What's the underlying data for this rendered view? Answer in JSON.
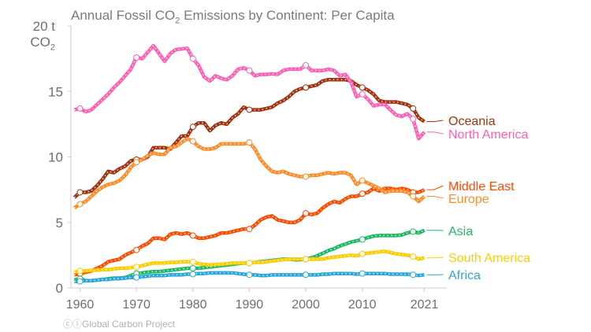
{
  "chart_data": {
    "type": "line",
    "title_prefix": "Annual Fossil CO",
    "title_sub": "2",
    "title_suffix": " Emissions by Continent: Per Capita",
    "ylabel_top": "20 t",
    "ylabel_unit": "CO",
    "ylabel_unit_sub": "2",
    "ylim": [
      0,
      20
    ],
    "xlim": [
      1958.5,
      2025
    ],
    "yticks": [
      "0",
      "5",
      "10",
      "15"
    ],
    "ytick_values": [
      0,
      5,
      10,
      15
    ],
    "xticks": [
      "1960",
      "1970",
      "1980",
      "1990",
      "2000",
      "2010",
      "2021"
    ],
    "xtick_values": [
      1960,
      1970,
      1980,
      1990,
      2000,
      2010,
      2021
    ],
    "marker_years": [
      1960,
      1970,
      1980,
      1990,
      2000,
      2010,
      2019
    ],
    "grid": false,
    "legend": "right, end-of-line labels",
    "series": [
      {
        "name": "Oceania",
        "color": "#a3320f",
        "start": 1959,
        "values": [
          6.9,
          7.3,
          7.3,
          7.4,
          7.8,
          8.3,
          8.9,
          8.8,
          9.1,
          9.3,
          9.7,
          9.8,
          9.8,
          10.0,
          10.7,
          10.7,
          10.7,
          10.6,
          11.1,
          11.6,
          11.6,
          12.3,
          12.6,
          12.6,
          12.0,
          12.4,
          12.6,
          12.5,
          13.0,
          13.3,
          13.8,
          13.6,
          13.6,
          13.6,
          13.7,
          13.8,
          14.1,
          14.3,
          14.6,
          15.0,
          15.2,
          15.3,
          15.4,
          15.5,
          15.8,
          15.9,
          15.9,
          15.9,
          15.9,
          15.8,
          15.5,
          15.3,
          15.1,
          14.8,
          14.3,
          14.2,
          14.2,
          14.2,
          14.1,
          14.0,
          13.7,
          13.0,
          12.7
        ]
      },
      {
        "name": "North America",
        "color": "#ff5fb4",
        "start": 1959,
        "values": [
          13.6,
          13.7,
          13.45,
          13.6,
          14.0,
          14.4,
          14.8,
          15.3,
          15.7,
          16.2,
          16.7,
          17.6,
          17.5,
          18.0,
          18.5,
          17.9,
          17.3,
          17.9,
          18.2,
          18.25,
          18.3,
          17.5,
          17.0,
          16.1,
          15.8,
          16.2,
          16.0,
          15.9,
          16.2,
          16.7,
          16.8,
          16.6,
          16.2,
          16.3,
          16.3,
          16.35,
          16.3,
          16.6,
          16.7,
          16.7,
          16.7,
          17.0,
          16.6,
          16.6,
          16.6,
          16.7,
          16.6,
          16.2,
          16.3,
          15.7,
          14.6,
          14.8,
          14.4,
          13.9,
          14.0,
          14.0,
          13.6,
          13.2,
          13.1,
          13.3,
          12.9,
          11.4,
          11.9
        ]
      },
      {
        "name": "Middle East",
        "color": "#ff4a00",
        "start": 1959,
        "values": [
          1.0,
          1.1,
          1.2,
          1.3,
          1.5,
          1.7,
          2.0,
          2.1,
          2.2,
          2.5,
          2.7,
          2.9,
          3.2,
          3.4,
          3.8,
          3.8,
          3.7,
          4.1,
          4.2,
          4.1,
          4.2,
          4.0,
          3.8,
          3.8,
          3.9,
          4.0,
          4.2,
          4.2,
          4.3,
          4.4,
          4.5,
          4.5,
          4.8,
          5.2,
          5.4,
          5.5,
          5.2,
          5.1,
          5.0,
          5.0,
          5.2,
          5.7,
          5.6,
          5.7,
          6.1,
          6.4,
          6.6,
          6.5,
          6.8,
          7.0,
          7.0,
          7.2,
          7.3,
          7.6,
          7.4,
          7.6,
          7.6,
          7.5,
          7.6,
          7.5,
          7.3,
          7.3,
          7.5
        ]
      },
      {
        "name": "Europe",
        "color": "#ff8c28",
        "start": 1959,
        "values": [
          6.1,
          6.4,
          6.6,
          7.0,
          7.4,
          7.7,
          7.9,
          8.0,
          8.2,
          8.6,
          9.2,
          9.6,
          9.8,
          10.1,
          10.3,
          10.2,
          10.2,
          10.7,
          10.8,
          11.1,
          11.4,
          11.2,
          10.8,
          10.6,
          10.6,
          10.7,
          11.0,
          11.0,
          11.0,
          11.0,
          11.0,
          11.1,
          10.6,
          9.8,
          9.3,
          8.9,
          8.8,
          8.9,
          8.7,
          8.6,
          8.5,
          8.5,
          8.6,
          8.6,
          8.7,
          8.8,
          8.7,
          8.8,
          8.8,
          8.6,
          7.9,
          8.2,
          8.0,
          7.8,
          7.6,
          7.3,
          7.4,
          7.4,
          7.4,
          7.3,
          7.0,
          6.6,
          7.0
        ]
      },
      {
        "name": "Asia",
        "color": "#1eb964",
        "start": 1959,
        "values": [
          0.6,
          0.7,
          0.55,
          0.55,
          0.6,
          0.65,
          0.7,
          0.75,
          0.75,
          0.8,
          0.95,
          1.1,
          1.15,
          1.2,
          1.25,
          1.25,
          1.3,
          1.35,
          1.4,
          1.45,
          1.5,
          1.5,
          1.5,
          1.55,
          1.6,
          1.65,
          1.7,
          1.75,
          1.8,
          1.85,
          1.9,
          1.9,
          1.95,
          2.0,
          2.05,
          2.1,
          2.15,
          2.2,
          2.2,
          2.15,
          2.15,
          2.2,
          2.3,
          2.45,
          2.65,
          2.85,
          3.0,
          3.2,
          3.35,
          3.5,
          3.6,
          3.7,
          3.85,
          3.95,
          4.0,
          4.0,
          4.0,
          4.0,
          4.05,
          4.2,
          4.3,
          4.2,
          4.4
        ]
      },
      {
        "name": "South America",
        "color": "#ffcc00",
        "start": 1959,
        "values": [
          1.2,
          1.3,
          1.3,
          1.35,
          1.35,
          1.4,
          1.4,
          1.45,
          1.5,
          1.5,
          1.55,
          1.6,
          1.7,
          1.8,
          1.9,
          1.9,
          1.9,
          1.95,
          1.95,
          2.0,
          2.0,
          2.0,
          1.85,
          1.8,
          1.75,
          1.8,
          1.8,
          1.85,
          1.9,
          1.9,
          1.9,
          1.9,
          1.95,
          1.95,
          2.0,
          2.05,
          2.1,
          2.15,
          2.2,
          2.2,
          2.2,
          2.2,
          2.2,
          2.2,
          2.2,
          2.3,
          2.35,
          2.4,
          2.45,
          2.5,
          2.45,
          2.6,
          2.65,
          2.7,
          2.75,
          2.8,
          2.7,
          2.6,
          2.55,
          2.5,
          2.4,
          2.2,
          2.3
        ]
      },
      {
        "name": "Africa",
        "color": "#2aa8dc",
        "start": 1959,
        "values": [
          0.5,
          0.5,
          0.55,
          0.55,
          0.6,
          0.65,
          0.65,
          0.7,
          0.7,
          0.75,
          0.8,
          0.8,
          0.85,
          0.9,
          0.95,
          0.95,
          0.95,
          1.0,
          1.0,
          1.0,
          1.05,
          1.05,
          1.1,
          1.1,
          1.15,
          1.15,
          1.15,
          1.15,
          1.15,
          1.1,
          1.05,
          1.0,
          1.0,
          0.95,
          0.95,
          1.0,
          1.0,
          1.0,
          1.0,
          1.0,
          1.0,
          1.0,
          1.0,
          1.0,
          1.05,
          1.05,
          1.1,
          1.1,
          1.1,
          1.1,
          1.05,
          1.1,
          1.1,
          1.1,
          1.1,
          1.1,
          1.05,
          1.05,
          1.05,
          1.05,
          1.0,
          0.95,
          1.0
        ]
      }
    ]
  },
  "credit": "Global Carbon Project"
}
